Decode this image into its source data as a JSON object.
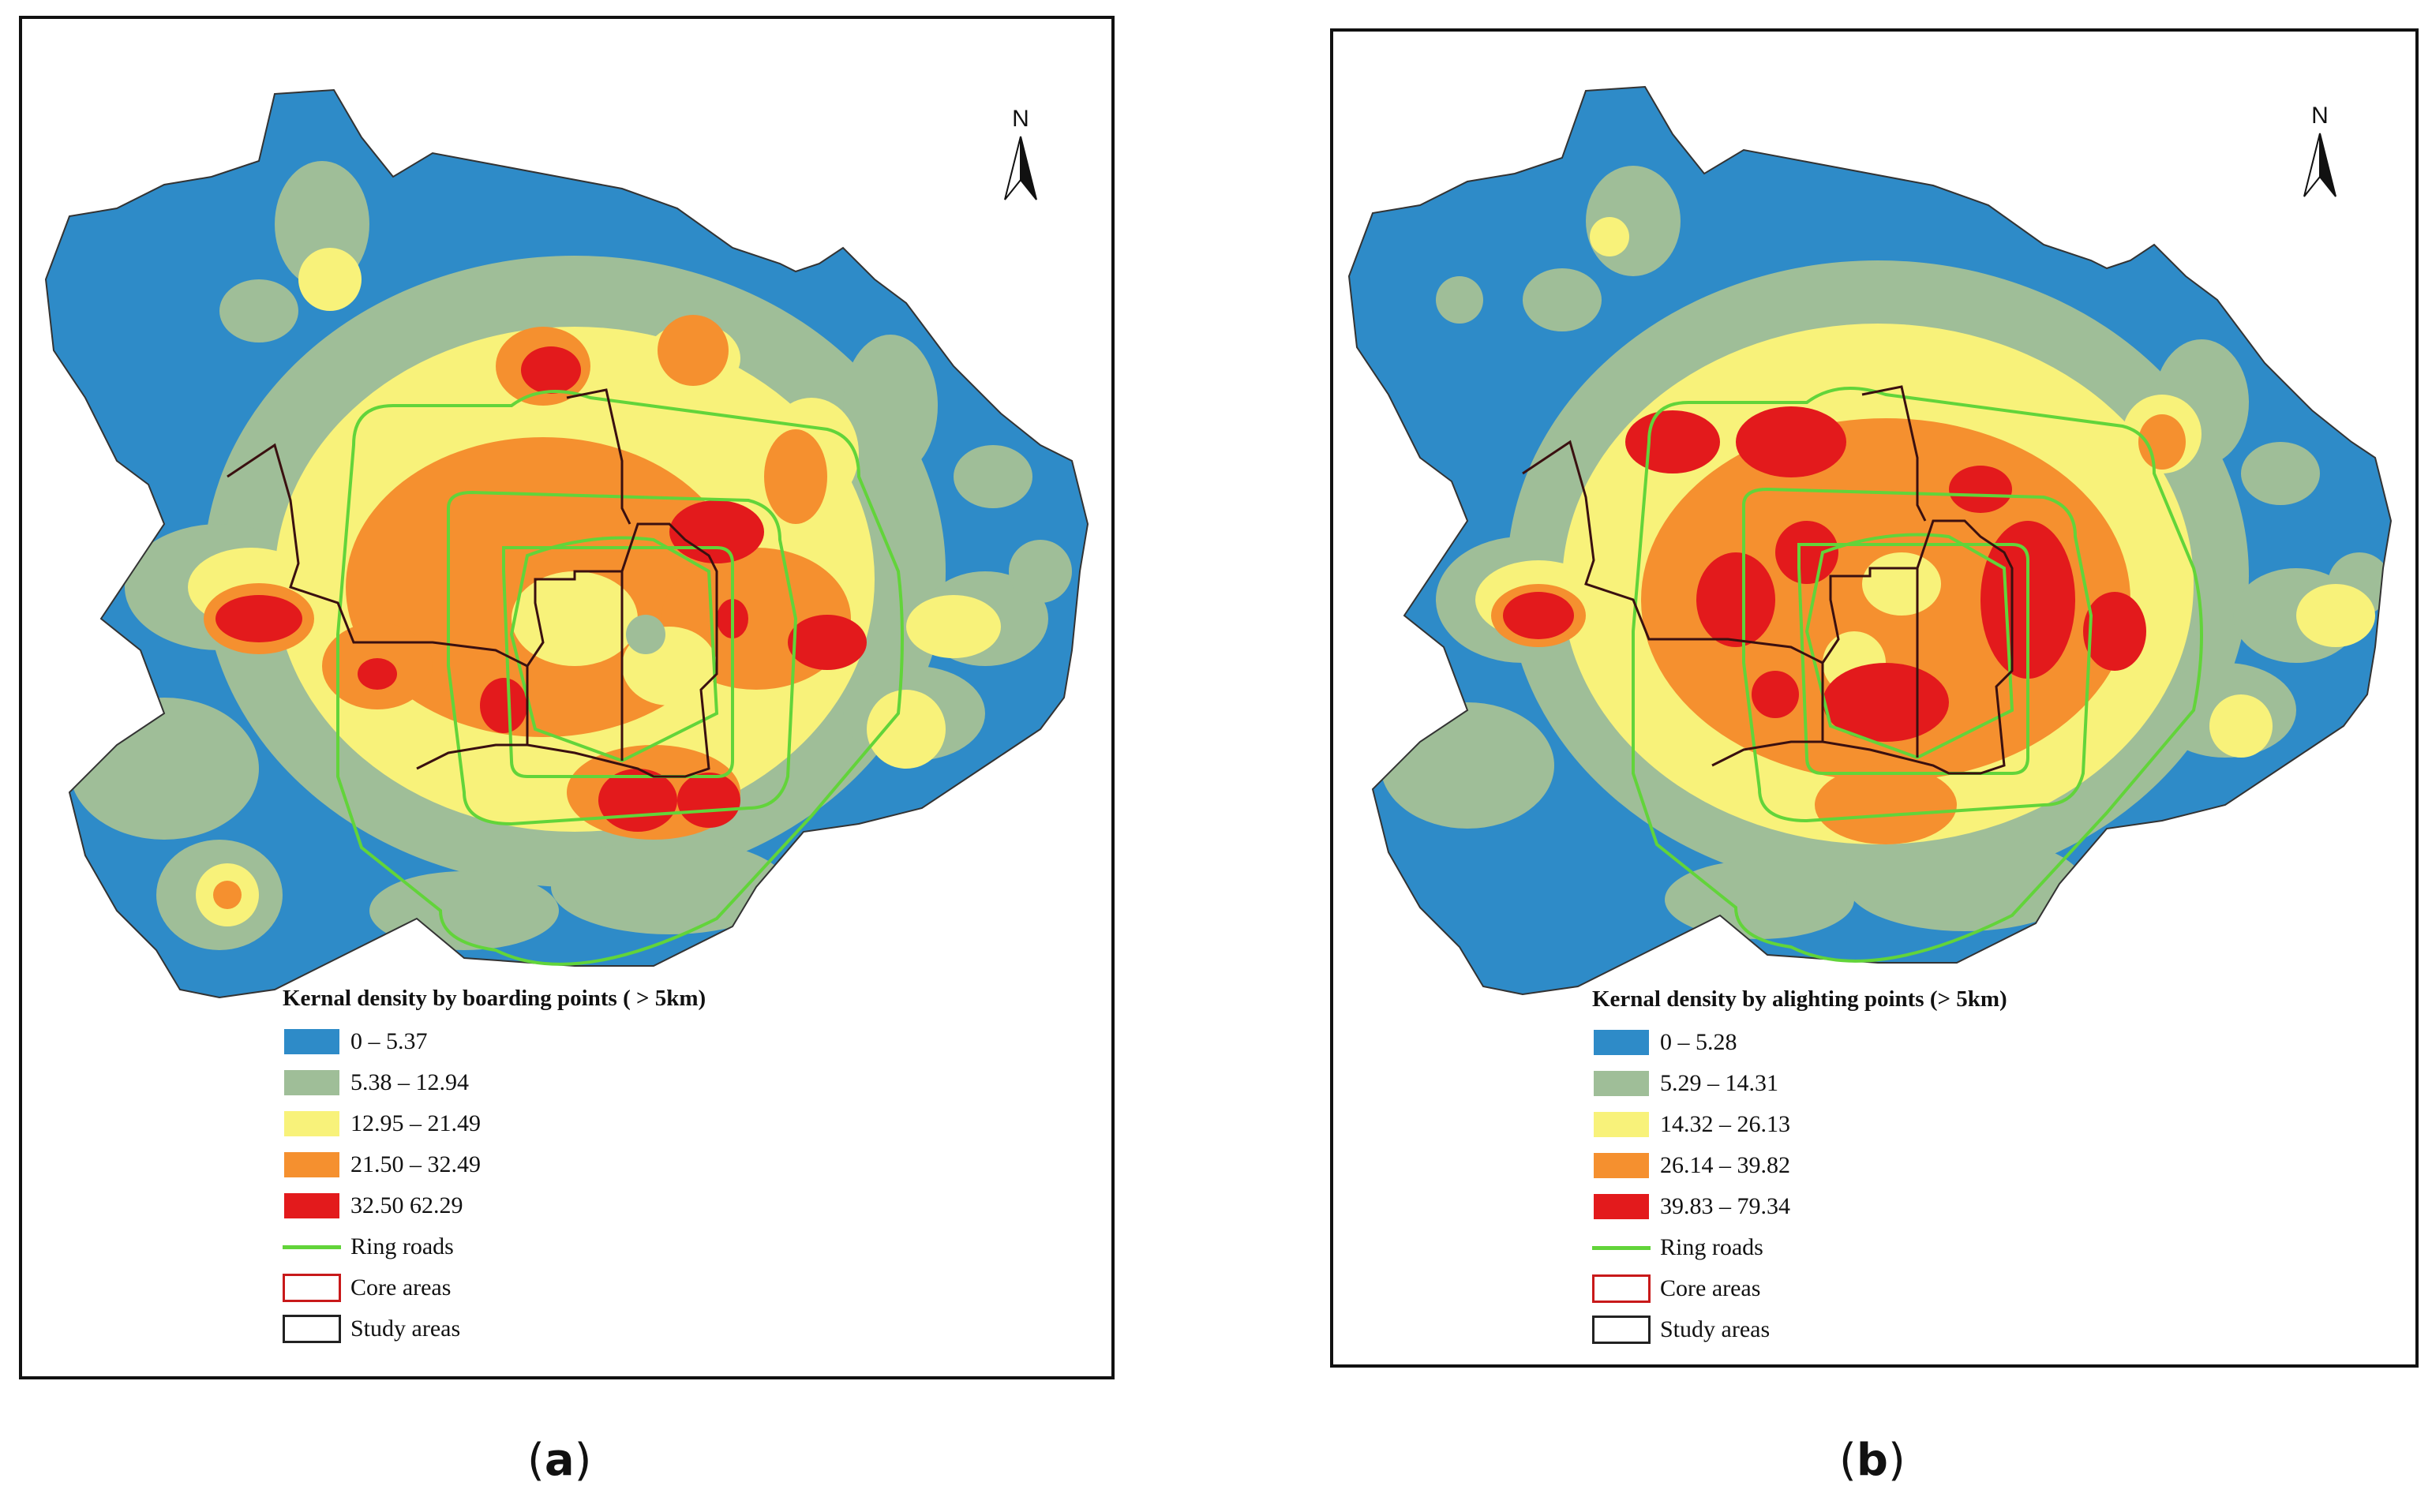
{
  "colors": {
    "class1": "#2e8bc8",
    "class2": "#9fbe98",
    "class3": "#f8f27a",
    "class4": "#f5902f",
    "class5": "#e31a1c",
    "ring_roads": "#62d43a",
    "core_areas": "#c8191a",
    "study_areas": "#222222"
  },
  "panel_a": {
    "north_label": "N",
    "legend": {
      "title": "Kernal density by boarding points ( > 5km)",
      "classes": [
        {
          "label": "0 – 5.37",
          "color_key": "class1"
        },
        {
          "label": "5.38 – 12.94",
          "color_key": "class2"
        },
        {
          "label": "12.95 – 21.49",
          "color_key": "class3"
        },
        {
          "label": "21.50 – 32.49",
          "color_key": "class4"
        },
        {
          "label": "32.50   62.29",
          "color_key": "class5"
        }
      ],
      "ring_roads": "Ring roads",
      "core_areas": "Core areas",
      "study_areas": "Study areas"
    },
    "caption_letter": "a"
  },
  "panel_b": {
    "north_label": "N",
    "legend": {
      "title": "Kernal density by alighting points (> 5km)",
      "classes": [
        {
          "label": "0 – 5.28",
          "color_key": "class1"
        },
        {
          "label": "5.29 – 14.31",
          "color_key": "class2"
        },
        {
          "label": "14.32 – 26.13",
          "color_key": "class3"
        },
        {
          "label": "26.14 – 39.82",
          "color_key": "class4"
        },
        {
          "label": "39.83 – 79.34",
          "color_key": "class5"
        }
      ],
      "ring_roads": "Ring roads",
      "core_areas": "Core areas",
      "study_areas": "Study areas"
    },
    "caption_letter": "b"
  }
}
